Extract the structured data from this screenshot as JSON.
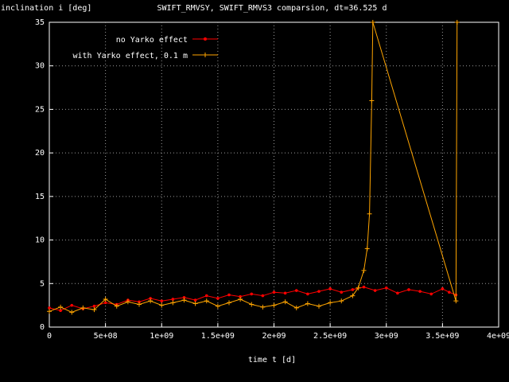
{
  "chart_data": {
    "type": "line",
    "title": "SWIFT_RMVSY, SWIFT_RMVS3 comparsion, dt=36.525 d",
    "xlabel": "time t [d]",
    "ylabel": "inclination i [deg]",
    "xlim": [
      0,
      4000000000
    ],
    "ylim": [
      0,
      35
    ],
    "xticks": [
      0,
      500000000,
      1000000000,
      1500000000,
      2000000000,
      2500000000,
      3000000000,
      3500000000,
      4000000000
    ],
    "xtick_labels": [
      "0",
      "5e+08",
      "1e+09",
      "1.5e+09",
      "2e+09",
      "2.5e+09",
      "3e+09",
      "3.5e+09",
      "4e+09"
    ],
    "yticks": [
      0,
      5,
      10,
      15,
      20,
      25,
      30,
      35
    ],
    "ytick_labels": [
      "0",
      "5",
      "10",
      "15",
      "20",
      "25",
      "30",
      "35"
    ],
    "grid": true,
    "legend_position": "top-left",
    "series": [
      {
        "name": "no Yarko effect",
        "color": "#ff0000",
        "marker": "dot",
        "x": [
          0,
          100000000,
          200000000,
          300000000,
          400000000,
          500000000,
          600000000,
          700000000,
          800000000,
          900000000,
          1000000000,
          1100000000,
          1200000000,
          1300000000,
          1400000000,
          1500000000,
          1600000000,
          1700000000,
          1800000000,
          1900000000,
          2000000000,
          2100000000,
          2200000000,
          2300000000,
          2400000000,
          2500000000,
          2600000000,
          2700000000,
          2800000000,
          2900000000,
          3000000000,
          3100000000,
          3200000000,
          3300000000,
          3400000000,
          3500000000,
          3560000000,
          3620000000
        ],
        "y": [
          2.2,
          1.9,
          2.5,
          2.1,
          2.4,
          2.8,
          2.6,
          3.1,
          2.9,
          3.3,
          3.0,
          3.2,
          3.4,
          3.1,
          3.6,
          3.3,
          3.7,
          3.5,
          3.8,
          3.6,
          4.0,
          3.9,
          4.2,
          3.8,
          4.1,
          4.4,
          4.0,
          4.3,
          4.6,
          4.2,
          4.5,
          3.9,
          4.3,
          4.1,
          3.8,
          4.4,
          4.0,
          3.7
        ]
      },
      {
        "name": "with Yarko effect, 0.1 m",
        "color": "#ffa500",
        "marker": "plus",
        "x": [
          0,
          100000000,
          200000000,
          300000000,
          400000000,
          500000000,
          600000000,
          700000000,
          800000000,
          900000000,
          1000000000,
          1100000000,
          1200000000,
          1300000000,
          1400000000,
          1500000000,
          1600000000,
          1700000000,
          1800000000,
          1900000000,
          2000000000,
          2100000000,
          2200000000,
          2300000000,
          2400000000,
          2500000000,
          2600000000,
          2700000000,
          2750000000,
          2800000000,
          2830000000,
          2850000000,
          2870000000,
          2880000000,
          3620000000,
          3630000000
        ],
        "y": [
          1.8,
          2.3,
          1.7,
          2.2,
          2.0,
          3.2,
          2.4,
          2.9,
          2.6,
          3.0,
          2.5,
          2.8,
          3.1,
          2.7,
          3.0,
          2.4,
          2.8,
          3.2,
          2.6,
          2.3,
          2.5,
          2.9,
          2.2,
          2.7,
          2.4,
          2.8,
          3.0,
          3.6,
          4.5,
          6.5,
          9.0,
          13.0,
          26.0,
          35.0,
          3.0,
          35.0
        ]
      }
    ]
  }
}
